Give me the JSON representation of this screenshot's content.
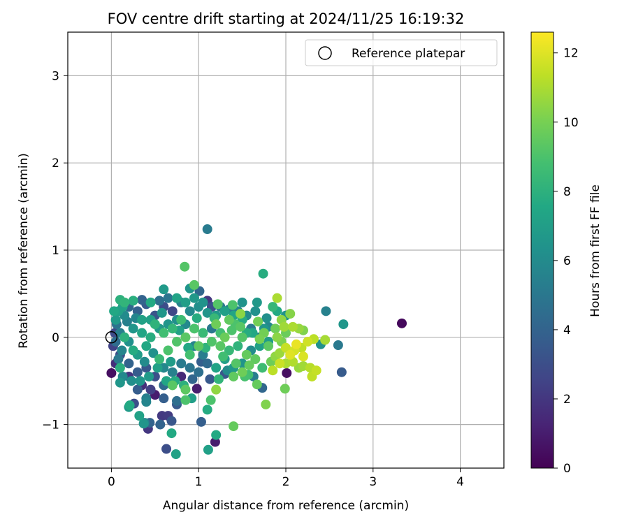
{
  "chart_data": {
    "type": "scatter",
    "title": "FOV centre drift starting at 2024/11/25 16:19:32",
    "xlabel": "Angular distance from reference (arcmin)",
    "ylabel": "Rotation from reference (arcmin)",
    "xlim": [
      -0.5,
      4.5
    ],
    "ylim": [
      -1.5,
      3.5
    ],
    "xticks": [
      0,
      1,
      2,
      3,
      4
    ],
    "yticks": [
      -1,
      0,
      1,
      2,
      3
    ],
    "grid": true,
    "legend": {
      "placement": "top-right",
      "entries": [
        "Reference platepar"
      ]
    },
    "reference_point": {
      "x": 0,
      "y": 0,
      "label": "Reference platepar"
    },
    "colorbar": {
      "label": "Hours from first FF file",
      "min": 0,
      "max": 12.6,
      "ticks": [
        0,
        2,
        4,
        6,
        8,
        10,
        12
      ],
      "colormap": "viridis"
    },
    "points": [
      {
        "x": 3.33,
        "y": 0.16,
        "c": 0.3
      },
      {
        "x": 1.1,
        "y": 1.24,
        "c": 5.2
      },
      {
        "x": 1.74,
        "y": 0.73,
        "c": 7.8
      },
      {
        "x": 0.84,
        "y": 0.81,
        "c": 9.2
      },
      {
        "x": 0.95,
        "y": 0.6,
        "c": 9.3
      },
      {
        "x": 0.9,
        "y": 0.56,
        "c": 6.5
      },
      {
        "x": 1.01,
        "y": 0.53,
        "c": 4.2
      },
      {
        "x": 0.6,
        "y": 0.55,
        "c": 6.8
      },
      {
        "x": 0.1,
        "y": 0.43,
        "c": 8.0
      },
      {
        "x": 0.35,
        "y": 0.43,
        "c": 4.0
      },
      {
        "x": 1.9,
        "y": 0.45,
        "c": 11.0
      },
      {
        "x": 2.46,
        "y": 0.3,
        "c": 5.5
      },
      {
        "x": 2.66,
        "y": 0.15,
        "c": 6.6
      },
      {
        "x": 1.5,
        "y": 0.4,
        "c": 6.4
      },
      {
        "x": 1.67,
        "y": 0.4,
        "c": 6.7
      },
      {
        "x": 1.39,
        "y": 0.37,
        "c": 9.0
      },
      {
        "x": 1.22,
        "y": 0.38,
        "c": 9.2
      },
      {
        "x": 1.1,
        "y": 0.42,
        "c": 2.0
      },
      {
        "x": 2.6,
        "y": -0.09,
        "c": 5.1
      },
      {
        "x": 2.64,
        "y": -0.4,
        "c": 3.6
      },
      {
        "x": 2.01,
        "y": -0.41,
        "c": 0.5
      },
      {
        "x": 1.99,
        "y": -0.59,
        "c": 9.8
      },
      {
        "x": 1.77,
        "y": -0.77,
        "c": 10.2
      },
      {
        "x": 1.67,
        "y": -0.54,
        "c": 9.6
      },
      {
        "x": 1.73,
        "y": -0.58,
        "c": 4.2
      },
      {
        "x": 1.4,
        "y": -1.02,
        "c": 9.6
      },
      {
        "x": 1.19,
        "y": -1.2,
        "c": 1.0
      },
      {
        "x": 1.2,
        "y": -1.12,
        "c": 7.6
      },
      {
        "x": 1.11,
        "y": -1.29,
        "c": 7.1
      },
      {
        "x": 1.1,
        "y": -0.83,
        "c": 7.7
      },
      {
        "x": 1.03,
        "y": -0.97,
        "c": 3.8
      },
      {
        "x": 1.14,
        "y": -0.72,
        "c": 9.0
      },
      {
        "x": 0.74,
        "y": -1.34,
        "c": 7.2
      },
      {
        "x": 0.63,
        "y": -1.28,
        "c": 3.0
      },
      {
        "x": 0.69,
        "y": -1.1,
        "c": 7.6
      },
      {
        "x": 0.56,
        "y": -1.0,
        "c": 4.0
      },
      {
        "x": 0.42,
        "y": -1.05,
        "c": 2.0
      },
      {
        "x": 0.38,
        "y": -0.98,
        "c": 5.5
      },
      {
        "x": 0.44,
        "y": -0.98,
        "c": 4.0
      },
      {
        "x": 0.37,
        "y": -0.99,
        "c": 6.5
      },
      {
        "x": 0.69,
        "y": -0.96,
        "c": 3.4
      },
      {
        "x": 0.58,
        "y": -0.9,
        "c": 2.1
      },
      {
        "x": 0.65,
        "y": -0.9,
        "c": 2.2
      },
      {
        "x": 0.32,
        "y": -0.9,
        "c": 7.2
      },
      {
        "x": 0.26,
        "y": -0.76,
        "c": 3.0
      },
      {
        "x": 0.2,
        "y": -0.8,
        "c": 6.8
      },
      {
        "x": 0.21,
        "y": -0.78,
        "c": 7.6
      },
      {
        "x": 0.4,
        "y": -0.74,
        "c": 5.7
      },
      {
        "x": 0.4,
        "y": -0.7,
        "c": 5.4
      },
      {
        "x": 0.6,
        "y": -0.7,
        "c": 3.8
      },
      {
        "x": 0.75,
        "y": -0.77,
        "c": 3.6
      },
      {
        "x": 0.75,
        "y": -0.73,
        "c": 4.6
      },
      {
        "x": 0.85,
        "y": -0.72,
        "c": 9.0
      },
      {
        "x": 0.92,
        "y": -0.7,
        "c": 7.0
      },
      {
        "x": 0.5,
        "y": -0.66,
        "c": 1.0
      },
      {
        "x": 0.98,
        "y": -0.59,
        "c": 1.0
      },
      {
        "x": 1.2,
        "y": -0.6,
        "c": 10.5
      },
      {
        "x": 0.85,
        "y": -0.6,
        "c": 9.4
      },
      {
        "x": 0.3,
        "y": -0.6,
        "c": 3.7
      },
      {
        "x": 0.1,
        "y": -0.52,
        "c": 6.6
      },
      {
        "x": 0.6,
        "y": -0.55,
        "c": 4.4
      },
      {
        "x": 0.7,
        "y": -0.55,
        "c": 9.3
      },
      {
        "x": 1.4,
        "y": -0.45,
        "c": 9.5
      },
      {
        "x": 1.5,
        "y": -0.4,
        "c": 9.8
      },
      {
        "x": 1.57,
        "y": -0.43,
        "c": 8.8
      },
      {
        "x": 1.3,
        "y": -0.42,
        "c": 3.4
      },
      {
        "x": 0.2,
        "y": -0.45,
        "c": 2.0
      },
      {
        "x": 0.35,
        "y": -0.55,
        "c": 1.7
      },
      {
        "x": 0.45,
        "y": -0.6,
        "c": 2.4
      },
      {
        "x": 0.8,
        "y": -0.45,
        "c": 1.5
      },
      {
        "x": 0.0,
        "y": -0.41,
        "c": 0.5
      },
      {
        "x": 0.05,
        "y": -0.3,
        "c": 1.6
      },
      {
        "x": 2.3,
        "y": -0.45,
        "c": 11.4
      },
      {
        "x": 2.35,
        "y": -0.38,
        "c": 11.5
      },
      {
        "x": 2.28,
        "y": -0.35,
        "c": 11.2
      },
      {
        "x": 2.2,
        "y": -0.33,
        "c": 10.8
      },
      {
        "x": 2.15,
        "y": -0.35,
        "c": 10.6
      },
      {
        "x": 2.0,
        "y": -0.3,
        "c": 11.0
      },
      {
        "x": 1.85,
        "y": -0.38,
        "c": 11.3
      },
      {
        "x": 1.93,
        "y": -0.3,
        "c": 11.6
      },
      {
        "x": 2.05,
        "y": -0.2,
        "c": 12.0
      },
      {
        "x": 2.1,
        "y": -0.15,
        "c": 11.8
      },
      {
        "x": 2.12,
        "y": -0.08,
        "c": 12.2
      },
      {
        "x": 2.0,
        "y": -0.12,
        "c": 11.5
      },
      {
        "x": 2.2,
        "y": -0.22,
        "c": 11.9
      },
      {
        "x": 2.25,
        "y": -0.05,
        "c": 11.7
      },
      {
        "x": 2.32,
        "y": -0.02,
        "c": 11.3
      },
      {
        "x": 2.45,
        "y": -0.03,
        "c": 10.9
      },
      {
        "x": 2.4,
        "y": -0.08,
        "c": 6.3
      },
      {
        "x": 2.2,
        "y": 0.08,
        "c": 10.2
      },
      {
        "x": 2.15,
        "y": 0.1,
        "c": 10.6
      },
      {
        "x": 2.08,
        "y": 0.12,
        "c": 11.0
      },
      {
        "x": 2.05,
        "y": 0.27,
        "c": 10.3
      },
      {
        "x": 1.95,
        "y": 0.2,
        "c": 10.5
      },
      {
        "x": 1.88,
        "y": 0.1,
        "c": 9.8
      },
      {
        "x": 1.9,
        "y": 0.0,
        "c": 10.4
      },
      {
        "x": 1.95,
        "y": -0.05,
        "c": 10.1
      },
      {
        "x": 2.0,
        "y": 0.05,
        "c": 9.7
      },
      {
        "x": 1.8,
        "y": -0.1,
        "c": 9.4
      },
      {
        "x": 1.75,
        "y": 0.05,
        "c": 9.9
      },
      {
        "x": 1.7,
        "y": -0.02,
        "c": 10.0
      },
      {
        "x": 1.65,
        "y": -0.25,
        "c": 9.5
      },
      {
        "x": 1.55,
        "y": -0.2,
        "c": 9.6
      },
      {
        "x": 1.5,
        "y": 0.0,
        "c": 9.2
      },
      {
        "x": 1.48,
        "y": 0.27,
        "c": 10.4
      },
      {
        "x": 1.42,
        "y": 0.15,
        "c": 9.0
      },
      {
        "x": 1.35,
        "y": 0.2,
        "c": 9.5
      },
      {
        "x": 1.3,
        "y": 0.0,
        "c": 9.7
      },
      {
        "x": 1.25,
        "y": -0.1,
        "c": 9.3
      },
      {
        "x": 1.2,
        "y": 0.15,
        "c": 9.8
      },
      {
        "x": 1.15,
        "y": -0.05,
        "c": 9.1
      },
      {
        "x": 1.05,
        "y": 0.05,
        "c": 8.5
      },
      {
        "x": 1.0,
        "y": -0.1,
        "c": 9.4
      },
      {
        "x": 0.95,
        "y": 0.1,
        "c": 9.0
      },
      {
        "x": 0.9,
        "y": -0.2,
        "c": 8.8
      },
      {
        "x": 0.85,
        "y": 0.0,
        "c": 9.3
      },
      {
        "x": 0.8,
        "y": 0.2,
        "c": 8.6
      },
      {
        "x": 0.75,
        "y": -0.05,
        "c": 9.1
      },
      {
        "x": 0.7,
        "y": 0.1,
        "c": 8.3
      },
      {
        "x": 0.65,
        "y": -0.15,
        "c": 9.0
      },
      {
        "x": 0.6,
        "y": 0.05,
        "c": 8.7
      },
      {
        "x": 0.55,
        "y": -0.25,
        "c": 8.4
      },
      {
        "x": 0.5,
        "y": 0.15,
        "c": 8.1
      },
      {
        "x": 0.45,
        "y": 0.0,
        "c": 7.8
      },
      {
        "x": 0.4,
        "y": -0.1,
        "c": 7.5
      },
      {
        "x": 0.35,
        "y": 0.2,
        "c": 7.2
      },
      {
        "x": 0.3,
        "y": -0.2,
        "c": 6.9
      },
      {
        "x": 0.25,
        "y": 0.1,
        "c": 6.6
      },
      {
        "x": 0.2,
        "y": -0.05,
        "c": 6.3
      },
      {
        "x": 0.15,
        "y": 0.25,
        "c": 6.0
      },
      {
        "x": 0.12,
        "y": -0.15,
        "c": 5.7
      },
      {
        "x": 0.1,
        "y": 0.05,
        "c": 5.4
      },
      {
        "x": 0.08,
        "y": -0.25,
        "c": 5.1
      },
      {
        "x": 0.06,
        "y": 0.15,
        "c": 4.8
      },
      {
        "x": 0.05,
        "y": -0.05,
        "c": 4.5
      },
      {
        "x": 0.2,
        "y": 0.35,
        "c": 4.2
      },
      {
        "x": 0.3,
        "y": 0.3,
        "c": 3.9
      },
      {
        "x": 0.4,
        "y": 0.38,
        "c": 3.6
      },
      {
        "x": 0.5,
        "y": 0.25,
        "c": 3.3
      },
      {
        "x": 0.6,
        "y": 0.35,
        "c": 3.0
      },
      {
        "x": 0.7,
        "y": 0.3,
        "c": 2.7
      },
      {
        "x": 0.8,
        "y": 0.4,
        "c": 5.6
      },
      {
        "x": 0.9,
        "y": 0.3,
        "c": 5.9
      },
      {
        "x": 1.0,
        "y": 0.35,
        "c": 6.2
      },
      {
        "x": 1.1,
        "y": 0.28,
        "c": 6.5
      },
      {
        "x": 1.2,
        "y": 0.25,
        "c": 6.8
      },
      {
        "x": 1.3,
        "y": 0.3,
        "c": 7.1
      },
      {
        "x": 1.4,
        "y": 0.25,
        "c": 7.4
      },
      {
        "x": 1.5,
        "y": 0.2,
        "c": 7.7
      },
      {
        "x": 1.6,
        "y": 0.1,
        "c": 5.2
      },
      {
        "x": 1.7,
        "y": 0.0,
        "c": 5.5
      },
      {
        "x": 1.8,
        "y": 0.12,
        "c": 5.8
      },
      {
        "x": 1.9,
        "y": 0.3,
        "c": 7.6
      },
      {
        "x": 2.0,
        "y": 0.25,
        "c": 6.4
      },
      {
        "x": 1.85,
        "y": 0.35,
        "c": 8.3
      },
      {
        "x": 1.6,
        "y": -0.15,
        "c": 6.1
      },
      {
        "x": 1.5,
        "y": -0.3,
        "c": 6.4
      },
      {
        "x": 1.4,
        "y": -0.35,
        "c": 6.7
      },
      {
        "x": 1.3,
        "y": -0.25,
        "c": 7.0
      },
      {
        "x": 1.2,
        "y": -0.35,
        "c": 7.3
      },
      {
        "x": 1.1,
        "y": -0.3,
        "c": 4.3
      },
      {
        "x": 1.0,
        "y": -0.4,
        "c": 4.6
      },
      {
        "x": 0.9,
        "y": -0.35,
        "c": 4.9
      },
      {
        "x": 0.8,
        "y": -0.3,
        "c": 5.2
      },
      {
        "x": 0.7,
        "y": -0.4,
        "c": 5.5
      },
      {
        "x": 0.6,
        "y": -0.35,
        "c": 5.8
      },
      {
        "x": 0.5,
        "y": -0.45,
        "c": 3.1
      },
      {
        "x": 0.4,
        "y": -0.35,
        "c": 3.4
      },
      {
        "x": 0.3,
        "y": -0.4,
        "c": 3.7
      },
      {
        "x": 0.2,
        "y": -0.3,
        "c": 4.0
      },
      {
        "x": 0.1,
        "y": -0.35,
        "c": 7.9
      },
      {
        "x": 0.15,
        "y": 0.4,
        "c": 8.2
      },
      {
        "x": 0.25,
        "y": 0.42,
        "c": 7.9
      },
      {
        "x": 0.45,
        "y": 0.4,
        "c": 7.6
      },
      {
        "x": 0.55,
        "y": 0.42,
        "c": 4.6
      },
      {
        "x": 0.65,
        "y": 0.45,
        "c": 4.9
      },
      {
        "x": 0.75,
        "y": 0.45,
        "c": 7.3
      },
      {
        "x": 0.85,
        "y": 0.4,
        "c": 7.0
      },
      {
        "x": 0.95,
        "y": 0.45,
        "c": 6.7
      },
      {
        "x": 1.05,
        "y": 0.4,
        "c": 6.4
      },
      {
        "x": 1.15,
        "y": 0.35,
        "c": 3.1
      },
      {
        "x": 1.25,
        "y": 0.35,
        "c": 5.1
      },
      {
        "x": 1.35,
        "y": 0.32,
        "c": 5.4
      },
      {
        "x": 1.45,
        "y": 0.3,
        "c": 5.7
      },
      {
        "x": 1.55,
        "y": 0.25,
        "c": 6.0
      },
      {
        "x": 1.65,
        "y": 0.3,
        "c": 6.3
      },
      {
        "x": 1.75,
        "y": 0.1,
        "c": 6.6
      },
      {
        "x": 1.8,
        "y": -0.05,
        "c": 6.9
      },
      {
        "x": 1.7,
        "y": -0.1,
        "c": 7.2
      },
      {
        "x": 1.62,
        "y": 0.05,
        "c": 7.5
      },
      {
        "x": 1.55,
        "y": 0.05,
        "c": 7.8
      },
      {
        "x": 1.45,
        "y": -0.1,
        "c": 8.1
      },
      {
        "x": 1.35,
        "y": -0.15,
        "c": 8.4
      },
      {
        "x": 1.25,
        "y": 0.05,
        "c": 8.7
      },
      {
        "x": 1.15,
        "y": 0.1,
        "c": 5.0
      },
      {
        "x": 1.05,
        "y": -0.2,
        "c": 5.3
      },
      {
        "x": 0.95,
        "y": -0.1,
        "c": 5.6
      },
      {
        "x": 0.85,
        "y": 0.15,
        "c": 5.9
      },
      {
        "x": 0.75,
        "y": 0.2,
        "c": 6.2
      },
      {
        "x": 0.65,
        "y": 0.15,
        "c": 6.5
      },
      {
        "x": 0.55,
        "y": 0.1,
        "c": 6.8
      },
      {
        "x": 0.45,
        "y": 0.2,
        "c": 7.1
      },
      {
        "x": 0.35,
        "y": 0.05,
        "c": 7.4
      },
      {
        "x": 0.25,
        "y": -0.15,
        "c": 7.7
      },
      {
        "x": 0.15,
        "y": 0.0,
        "c": 8.0
      },
      {
        "x": 0.08,
        "y": 0.3,
        "c": 7.1
      },
      {
        "x": 0.05,
        "y": 0.2,
        "c": 6.8
      },
      {
        "x": 0.02,
        "y": -0.1,
        "c": 2.5
      },
      {
        "x": 0.04,
        "y": 0.05,
        "c": 2.8
      },
      {
        "x": 0.1,
        "y": -0.2,
        "c": 3.1
      },
      {
        "x": 0.18,
        "y": 0.18,
        "c": 5.4
      },
      {
        "x": 0.28,
        "y": 0.22,
        "c": 5.7
      },
      {
        "x": 0.38,
        "y": -0.28,
        "c": 6.0
      },
      {
        "x": 0.48,
        "y": -0.18,
        "c": 6.3
      },
      {
        "x": 0.58,
        "y": 0.28,
        "c": 6.6
      },
      {
        "x": 0.68,
        "y": -0.28,
        "c": 6.9
      },
      {
        "x": 0.78,
        "y": 0.08,
        "c": 7.2
      },
      {
        "x": 0.88,
        "y": -0.12,
        "c": 7.5
      },
      {
        "x": 0.98,
        "y": 0.22,
        "c": 7.8
      },
      {
        "x": 1.08,
        "y": -0.12,
        "c": 8.1
      },
      {
        "x": 1.18,
        "y": 0.22,
        "c": 8.4
      },
      {
        "x": 1.28,
        "y": -0.22,
        "c": 8.7
      },
      {
        "x": 1.38,
        "y": 0.08,
        "c": 9.0
      },
      {
        "x": 1.48,
        "y": 0.12,
        "c": 9.3
      },
      {
        "x": 1.58,
        "y": -0.32,
        "c": 9.6
      },
      {
        "x": 1.68,
        "y": 0.18,
        "c": 9.9
      },
      {
        "x": 1.78,
        "y": 0.22,
        "c": 6.2
      },
      {
        "x": 1.88,
        "y": -0.22,
        "c": 10.5
      },
      {
        "x": 1.98,
        "y": 0.12,
        "c": 10.8
      },
      {
        "x": 2.08,
        "y": -0.28,
        "c": 11.1
      },
      {
        "x": 2.18,
        "y": -0.12,
        "c": 11.4
      },
      {
        "x": 1.93,
        "y": -0.18,
        "c": 10.7
      },
      {
        "x": 1.83,
        "y": -0.28,
        "c": 9.8
      },
      {
        "x": 1.73,
        "y": -0.35,
        "c": 8.6
      },
      {
        "x": 1.63,
        "y": -0.45,
        "c": 5.3
      },
      {
        "x": 1.53,
        "y": -0.45,
        "c": 8.9
      },
      {
        "x": 1.43,
        "y": -0.3,
        "c": 9.2
      },
      {
        "x": 1.33,
        "y": -0.38,
        "c": 6.0
      },
      {
        "x": 1.23,
        "y": -0.48,
        "c": 8.2
      },
      {
        "x": 1.13,
        "y": -0.48,
        "c": 3.5
      },
      {
        "x": 1.03,
        "y": -0.28,
        "c": 3.8
      },
      {
        "x": 0.93,
        "y": -0.48,
        "c": 4.1
      },
      {
        "x": 0.83,
        "y": -0.55,
        "c": 8.0
      },
      {
        "x": 0.73,
        "y": -0.5,
        "c": 7.7
      },
      {
        "x": 0.63,
        "y": -0.5,
        "c": 7.4
      },
      {
        "x": 0.53,
        "y": -0.35,
        "c": 7.1
      },
      {
        "x": 0.43,
        "y": -0.45,
        "c": 6.8
      },
      {
        "x": 0.33,
        "y": -0.5,
        "c": 6.5
      },
      {
        "x": 0.23,
        "y": -0.5,
        "c": 6.2
      },
      {
        "x": 0.13,
        "y": -0.45,
        "c": 5.9
      },
      {
        "x": 0.03,
        "y": 0.3,
        "c": 7.5
      },
      {
        "x": 0.13,
        "y": 0.35,
        "c": 7.2
      }
    ]
  }
}
